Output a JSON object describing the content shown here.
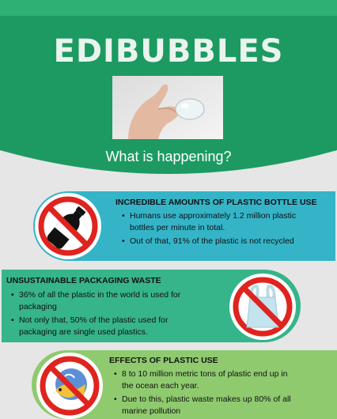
{
  "header": {
    "title": "EDIBUBBLES",
    "subtitle": "What is happening?"
  },
  "sections": [
    {
      "title": "INCREDIBLE AMOUNTS OF PLASTIC BOTTLE USE",
      "points": [
        "Humans use approximately 1.2 million plastic bottles per minute in total.",
        "Out of that, 91% of the plastic is not recycled"
      ]
    },
    {
      "title": "UNSUSTAINABLE PACKAGING WASTE",
      "points": [
        "36% of all the plastic in the world is used for packaging",
        "Not only that, 50% of the plastic used for packaging are single used plastics."
      ]
    },
    {
      "title": "EFFECTS OF PLASTIC USE",
      "points": [
        "8 to 10 million metric tons of plastic end up in the ocean each year.",
        "Due to this, plastic waste makes up 80% of all marine pollution"
      ]
    }
  ],
  "icons": [
    "no-plastic-bottle-icon",
    "no-plastic-bag-icon",
    "no-plastic-in-ocean-icon"
  ],
  "colors": {
    "header_green": "#1e9b63",
    "header_light": "#2cb073",
    "teal": "#35b4c8",
    "green": "#36b48a",
    "lime": "#8fca6f",
    "prohibition_red": "#e0231e"
  }
}
